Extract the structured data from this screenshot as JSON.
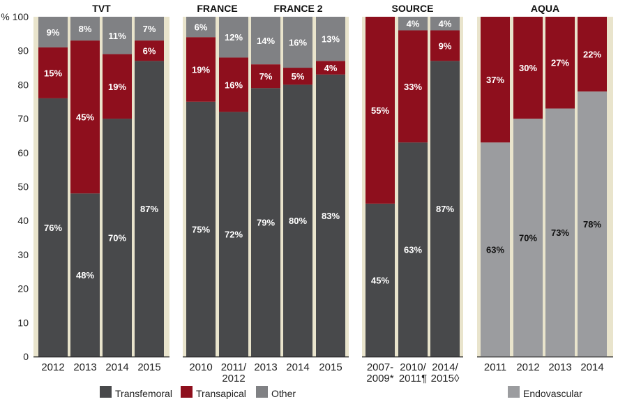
{
  "chart_data": {
    "type": "bar",
    "stacked": true,
    "ylabel": "%",
    "ylim": [
      0,
      100
    ],
    "yticks": [
      "0",
      "10",
      "20",
      "30",
      "40",
      "50",
      "60",
      "70",
      "80",
      "90",
      "100"
    ],
    "ytick_top_prefix": "%",
    "legend": [
      {
        "name": "Transfemoral",
        "color": "#48494b"
      },
      {
        "name": "Transapical",
        "color": "#8e0f1d"
      },
      {
        "name": "Other",
        "color": "#808184"
      },
      {
        "name": "Endovascular",
        "color": "#9b9c9f"
      }
    ],
    "panels": [
      {
        "title": "TVT",
        "bars": [
          {
            "category": [
              "2012"
            ],
            "transfemoral": 76,
            "transapical": 15,
            "other": 9
          },
          {
            "category": [
              "2013"
            ],
            "transfemoral": 48,
            "transapical": 45,
            "other": 8
          },
          {
            "category": [
              "2014"
            ],
            "transfemoral": 70,
            "transapical": 19,
            "other": 11
          },
          {
            "category": [
              "2015"
            ],
            "transfemoral": 87,
            "transapical": 6,
            "other": 7
          }
        ]
      },
      {
        "title": "FRANCE",
        "subtitle2": "FRANCE 2",
        "bars": [
          {
            "category": [
              "2010"
            ],
            "transfemoral": 75,
            "transapical": 19,
            "other": 6
          },
          {
            "category": [
              "2011/",
              "2012"
            ],
            "transfemoral": 72,
            "transapical": 16,
            "other": 12
          },
          {
            "category": [
              "2013"
            ],
            "transfemoral": 79,
            "transapical": 7,
            "other": 14
          },
          {
            "category": [
              "2014"
            ],
            "transfemoral": 80,
            "transapical": 5,
            "other": 16
          },
          {
            "category": [
              "2015"
            ],
            "transfemoral": 83,
            "transapical": 4,
            "other": 13
          }
        ]
      },
      {
        "title": "SOURCE",
        "bars": [
          {
            "category": [
              "2007-",
              "2009*"
            ],
            "transfemoral": 45,
            "transapical": 55,
            "other": null
          },
          {
            "category": [
              "2010/",
              "2011¶"
            ],
            "transfemoral": 63,
            "transapical": 33,
            "other": 4
          },
          {
            "category": [
              "2014/",
              "2015◊"
            ],
            "transfemoral": 87,
            "transapical": 9,
            "other": 4
          }
        ]
      },
      {
        "title": "AQUA",
        "bars": [
          {
            "category": [
              "2011"
            ],
            "endovascular": 63,
            "transapical": 37
          },
          {
            "category": [
              "2012"
            ],
            "endovascular": 70,
            "transapical": 30
          },
          {
            "category": [
              "2013"
            ],
            "endovascular": 73,
            "transapical": 27
          },
          {
            "category": [
              "2014"
            ],
            "endovascular": 78,
            "transapical": 22
          }
        ]
      }
    ]
  }
}
